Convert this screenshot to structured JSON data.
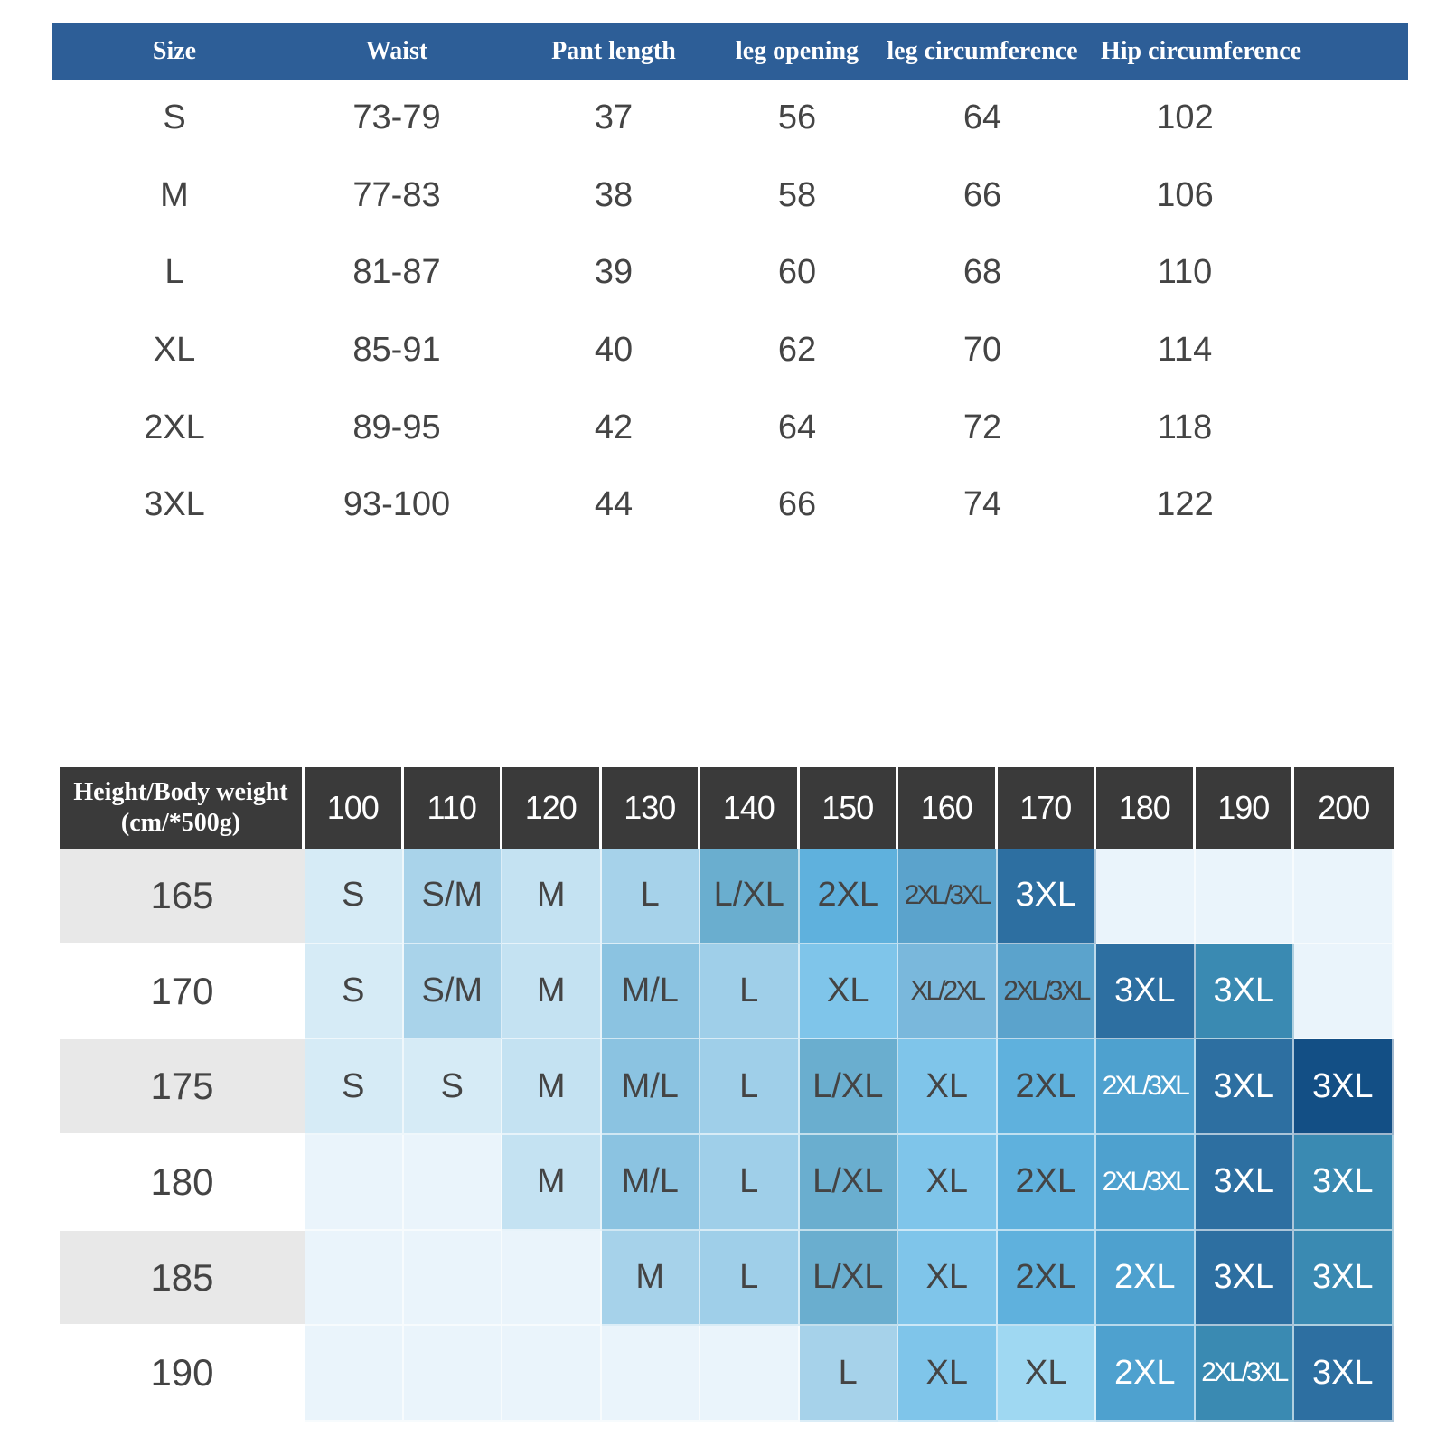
{
  "size_chart": {
    "headers": [
      "Size",
      "Waist",
      "Pant length",
      "leg opening",
      "leg circumference",
      "Hip circumference"
    ],
    "rows": [
      [
        "S",
        "73-79",
        "37",
        "56",
        "64",
        "102"
      ],
      [
        "M",
        "77-83",
        "38",
        "58",
        "66",
        "106"
      ],
      [
        "L",
        "81-87",
        "39",
        "60",
        "68",
        "110"
      ],
      [
        "XL",
        "85-91",
        "40",
        "62",
        "70",
        "114"
      ],
      [
        "2XL",
        "89-95",
        "42",
        "64",
        "72",
        "118"
      ],
      [
        "3XL",
        "93-100",
        "44",
        "66",
        "74",
        "122"
      ]
    ],
    "header_color": "#2d5e97"
  },
  "recommendation": {
    "corner_line1": "Height/Body weight",
    "corner_line2": "(cm/*500g)",
    "weights": [
      "100",
      "110",
      "120",
      "130",
      "140",
      "150",
      "160",
      "170",
      "180",
      "190",
      "200"
    ],
    "heights": [
      "165",
      "170",
      "175",
      "180",
      "185",
      "190"
    ],
    "cells": [
      [
        "S",
        "S/M",
        "M",
        "L",
        "L/XL",
        "2XL",
        "2XL/3XL",
        "3XL",
        "",
        "",
        ""
      ],
      [
        "S",
        "S/M",
        "M",
        "M/L",
        "L",
        "XL",
        "XL/2XL",
        "2XL/3XL",
        "3XL",
        "3XL",
        ""
      ],
      [
        "S",
        "S",
        "M",
        "M/L",
        "L",
        "L/XL",
        "XL",
        "2XL",
        "2XL/3XL",
        "3XL",
        "3XL"
      ],
      [
        "",
        "",
        "M",
        "M/L",
        "L",
        "L/XL",
        "XL",
        "2XL",
        "2XL/3XL",
        "3XL",
        "3XL"
      ],
      [
        "",
        "",
        "",
        "M",
        "L",
        "L/XL",
        "XL",
        "2XL",
        "2XL",
        "3XL",
        "3XL"
      ],
      [
        "",
        "",
        "",
        "",
        "",
        "L",
        "XL",
        "XL",
        "2XL",
        "2XL/3XL",
        "3XL"
      ]
    ],
    "cell_colors": [
      [
        "#d6ebf6",
        "#a9d3ea",
        "#c4e2f2",
        "#a6d2ea",
        "#6aaecf",
        "#5fb1dd",
        "#5ba3cc",
        "#2d6fa1",
        "#eaf4fb",
        "#eaf4fb",
        "#eaf4fb"
      ],
      [
        "#d6ebf6",
        "#a9d3ea",
        "#c4e2f2",
        "#8bc3e1",
        "#9fcfe9",
        "#7fc5ea",
        "#7ab8dc",
        "#5ba3cc",
        "#2d6fa1",
        "#3a8ab2",
        "#eaf4fb"
      ],
      [
        "#d6ebf6",
        "#d6ebf6",
        "#c4e2f2",
        "#8bc3e1",
        "#9fcfe9",
        "#6aaecf",
        "#7fc5ea",
        "#5fb1dd",
        "#4ea1cf",
        "#2d6fa1",
        "#134f85"
      ],
      [
        "#eaf4fb",
        "#eaf4fb",
        "#c4e2f2",
        "#8bc3e1",
        "#9fcfe9",
        "#6aaecf",
        "#7fc5ea",
        "#5fb1dd",
        "#4ea1cf",
        "#2d6fa1",
        "#3a8ab2"
      ],
      [
        "#eaf4fb",
        "#eaf4fb",
        "#eaf4fb",
        "#a6d2ea",
        "#9fcfe9",
        "#6aaecf",
        "#7fc5ea",
        "#5fb1dd",
        "#4ea1cf",
        "#2d6fa1",
        "#3a8ab2"
      ],
      [
        "#eaf4fb",
        "#eaf4fb",
        "#eaf4fb",
        "#eaf4fb",
        "#eaf4fb",
        "#a6d2ea",
        "#7fc5ea",
        "#9fd8f2",
        "#4ea1cf",
        "#3a8ab2",
        "#2d6fa1"
      ]
    ],
    "text_colors": [
      [
        "#444",
        "#444",
        "#444",
        "#444",
        "#444",
        "#444",
        "#444",
        "#fff",
        "#444",
        "#444",
        "#444"
      ],
      [
        "#444",
        "#444",
        "#444",
        "#444",
        "#444",
        "#444",
        "#444",
        "#444",
        "#fff",
        "#fff",
        "#444"
      ],
      [
        "#444",
        "#444",
        "#444",
        "#444",
        "#444",
        "#444",
        "#444",
        "#444",
        "#fff",
        "#fff",
        "#fff"
      ],
      [
        "#444",
        "#444",
        "#444",
        "#444",
        "#444",
        "#444",
        "#444",
        "#444",
        "#fff",
        "#fff",
        "#fff"
      ],
      [
        "#444",
        "#444",
        "#444",
        "#444",
        "#444",
        "#444",
        "#444",
        "#444",
        "#fff",
        "#fff",
        "#fff"
      ],
      [
        "#444",
        "#444",
        "#444",
        "#444",
        "#444",
        "#444",
        "#444",
        "#444",
        "#fff",
        "#fff",
        "#fff"
      ]
    ]
  }
}
